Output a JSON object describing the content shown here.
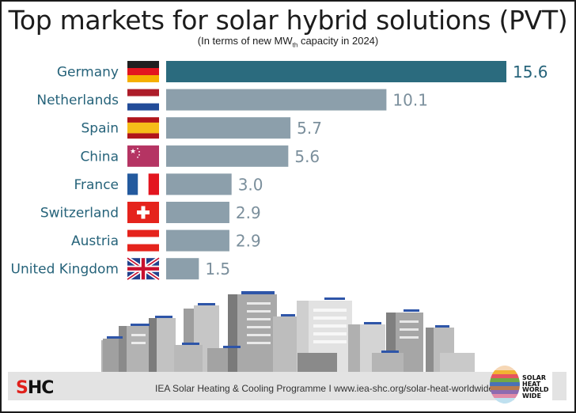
{
  "title": "Top markets for solar hybrid solutions (PVT)",
  "subtitle_pre": "(In terms of new MW",
  "subtitle_sub": "th",
  "subtitle_post": " capacity in 2024)",
  "colors": {
    "highlight": "#2b6b7e",
    "bar": "#8c9fab",
    "label": "#26637a",
    "value_highlight": "#26637a",
    "value": "#7b8f9c"
  },
  "chart_data": {
    "type": "bar",
    "orientation": "horizontal",
    "title": "Top markets for solar hybrid solutions (PVT)",
    "subtitle": "(In terms of new MWth capacity in 2024)",
    "xlabel": "",
    "ylabel": "",
    "categories": [
      "Germany",
      "Netherlands",
      "Spain",
      "China",
      "France",
      "Switzerland",
      "Austria",
      "United Kingdom"
    ],
    "values": [
      15.6,
      10.1,
      5.7,
      5.6,
      3.0,
      2.9,
      2.9,
      1.5
    ],
    "value_labels": [
      "15.6",
      "10.1",
      "5.7",
      "5.6",
      "3.0",
      "2.9",
      "2.9",
      "1.5"
    ],
    "highlight_index": 0,
    "xlim": [
      0,
      15.6
    ],
    "grid": false,
    "legend": "none",
    "flags": [
      "germany-flag",
      "netherlands-flag",
      "spain-flag",
      "china-flag",
      "france-flag",
      "switzerland-flag",
      "austria-flag",
      "united-kingdom-flag"
    ]
  },
  "footer": {
    "logo_left_s": "S",
    "logo_left_hc": "HC",
    "credit": "IEA Solar Heating & Cooling Programme I www.iea-shc.org/solar-heat-worldwide",
    "logo_right_lines": [
      "SOLAR",
      "HEAT",
      "WORLD",
      "WIDE"
    ]
  }
}
